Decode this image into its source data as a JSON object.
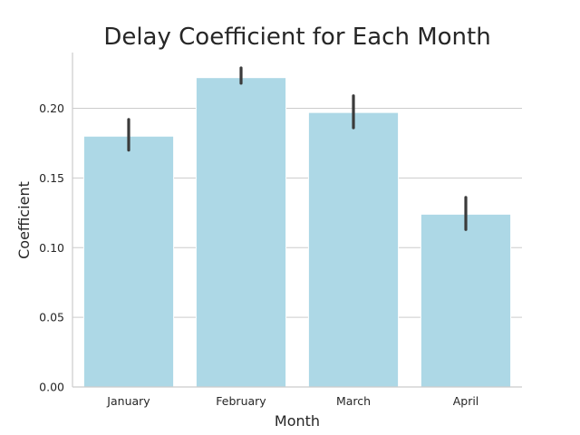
{
  "chart_data": {
    "type": "bar",
    "title": "Delay Coefficient for Each Month",
    "xlabel": "Month",
    "ylabel": "Coefficient",
    "categories": [
      "January",
      "February",
      "March",
      "April"
    ],
    "values": [
      0.18,
      0.222,
      0.197,
      0.124
    ],
    "error_low": [
      0.17,
      0.218,
      0.186,
      0.113
    ],
    "error_high": [
      0.192,
      0.229,
      0.209,
      0.136
    ],
    "ylim": [
      0,
      0.24
    ],
    "yticks": [
      "0.00",
      "0.05",
      "0.10",
      "0.15",
      "0.20"
    ],
    "ytick_values": [
      0,
      0.05,
      0.1,
      0.15,
      0.2
    ],
    "grid": "horizontal",
    "bar_color": "#add8e6",
    "error_color": "#3b3b3b"
  }
}
